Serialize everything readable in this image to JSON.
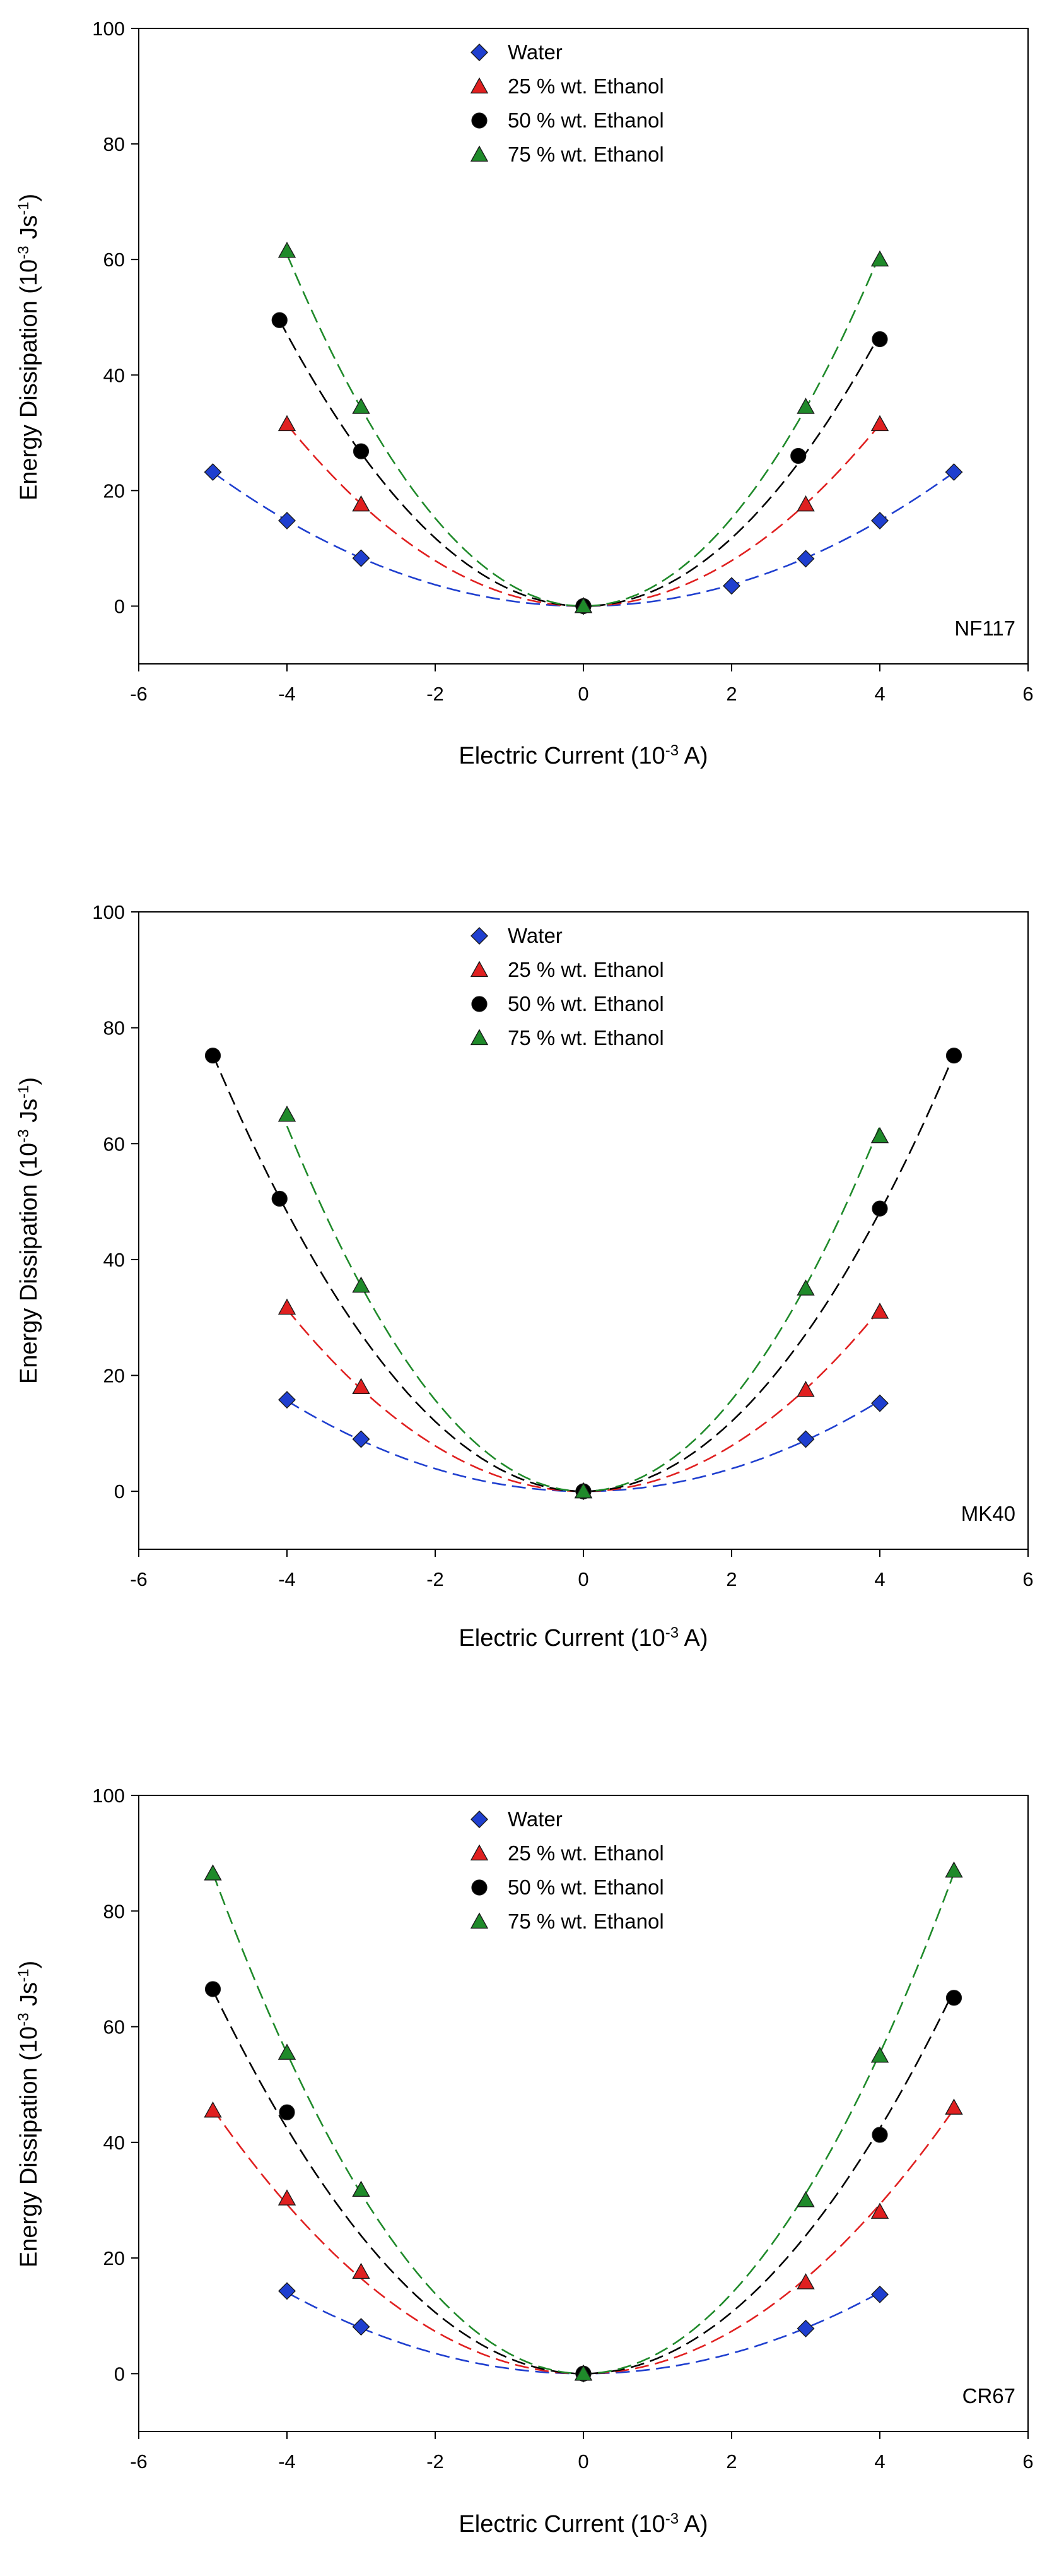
{
  "figure": {
    "colors": {
      "water": "#1f3fcf",
      "ethanol_25": "#e02020",
      "ethanol_50": "#000000",
      "ethanol_75": "#1f8a2a"
    }
  },
  "chart_data": [
    {
      "type": "scatter",
      "panel_label": "NF117",
      "xlabel": "Electric Current (10^-3 A)",
      "ylabel": "Energy Dissipation (10^-3 Js^-1)",
      "xlim": [
        -6,
        6
      ],
      "ylim": [
        -10,
        100
      ],
      "xticks": [
        -6,
        -4,
        -2,
        0,
        2,
        4,
        6
      ],
      "yticks": [
        0,
        20,
        40,
        60,
        80,
        100
      ],
      "legend_position": "top-center",
      "grid": false,
      "fit": "quadratic dashed curves",
      "series": [
        {
          "name": "Water",
          "marker": "diamond",
          "color": "#1f3fcf",
          "x": [
            -5,
            -4,
            -3,
            0,
            2,
            3,
            4,
            5
          ],
          "y": [
            23.2,
            14.8,
            8.3,
            0,
            3.5,
            8.2,
            14.8,
            23.2
          ]
        },
        {
          "name": "25 % wt. Ethanol",
          "marker": "triangle",
          "color": "#e02020",
          "x": [
            -4,
            -3,
            0,
            3,
            4
          ],
          "y": [
            31.5,
            17.6,
            0,
            17.6,
            31.5
          ]
        },
        {
          "name": "50 % wt. Ethanol",
          "marker": "circle",
          "color": "#000000",
          "x": [
            -4.1,
            -3,
            0,
            2.9,
            4
          ],
          "y": [
            49.5,
            26.8,
            0,
            26,
            46.2
          ]
        },
        {
          "name": "75 % wt. Ethanol",
          "marker": "triangle",
          "color": "#1f8a2a",
          "x": [
            -4,
            -3,
            0,
            3,
            4
          ],
          "y": [
            61.5,
            34.5,
            0,
            34.5,
            60
          ]
        }
      ]
    },
    {
      "type": "scatter",
      "panel_label": "MK40",
      "xlabel": "Electric Current (10^-3 A)",
      "ylabel": "Energy Dissipation (10^-3 Js^-1)",
      "xlim": [
        -6,
        6
      ],
      "ylim": [
        -10,
        100
      ],
      "xticks": [
        -6,
        -4,
        -2,
        0,
        2,
        4,
        6
      ],
      "yticks": [
        0,
        20,
        40,
        60,
        80,
        100
      ],
      "legend_position": "top-center",
      "grid": false,
      "fit": "quadratic dashed curves",
      "series": [
        {
          "name": "Water",
          "marker": "diamond",
          "color": "#1f3fcf",
          "x": [
            -4,
            -3,
            0,
            3,
            4
          ],
          "y": [
            15.8,
            9,
            0,
            9,
            15.2
          ]
        },
        {
          "name": "25 % wt. Ethanol",
          "marker": "triangle",
          "color": "#e02020",
          "x": [
            -4,
            -3,
            0,
            3,
            4
          ],
          "y": [
            31.7,
            18,
            0,
            17.5,
            31
          ]
        },
        {
          "name": "50 % wt. Ethanol",
          "marker": "circle",
          "color": "#000000",
          "x": [
            -5,
            -4.1,
            0,
            4,
            5
          ],
          "y": [
            75.2,
            50.5,
            0,
            48.8,
            75.2
          ]
        },
        {
          "name": "75 % wt. Ethanol",
          "marker": "triangle",
          "color": "#1f8a2a",
          "x": [
            -4,
            -3,
            0,
            3,
            4
          ],
          "y": [
            65,
            35.5,
            0,
            35,
            61.3
          ]
        }
      ]
    },
    {
      "type": "scatter",
      "panel_label": "CR67",
      "xlabel": "Electric Current (10^-3 A)",
      "ylabel": "Energy Dissipation (10^-3 Js^-1)",
      "xlim": [
        -6,
        6
      ],
      "ylim": [
        -10,
        100
      ],
      "xticks": [
        -6,
        -4,
        -2,
        0,
        2,
        4,
        6
      ],
      "yticks": [
        0,
        20,
        40,
        60,
        80,
        100
      ],
      "legend_position": "top-center",
      "grid": false,
      "fit": "quadratic dashed curves",
      "series": [
        {
          "name": "Water",
          "marker": "diamond",
          "color": "#1f3fcf",
          "x": [
            -4,
            -3,
            0,
            3,
            4
          ],
          "y": [
            14.3,
            8.1,
            0,
            7.8,
            13.7
          ]
        },
        {
          "name": "25 % wt. Ethanol",
          "marker": "triangle",
          "color": "#e02020",
          "x": [
            -5,
            -4,
            -3,
            0,
            3,
            4,
            5
          ],
          "y": [
            45.5,
            30.3,
            17.6,
            0,
            15.8,
            28,
            46
          ]
        },
        {
          "name": "50 % wt. Ethanol",
          "marker": "circle",
          "color": "#000000",
          "x": [
            -5,
            -4,
            0,
            4,
            5
          ],
          "y": [
            66.5,
            45.2,
            0,
            41.3,
            65
          ]
        },
        {
          "name": "75 % wt. Ethanol",
          "marker": "triangle",
          "color": "#1f8a2a",
          "x": [
            -5,
            -4,
            -3,
            0,
            3,
            4,
            5
          ],
          "y": [
            86.5,
            55.5,
            31.8,
            0,
            30,
            55,
            87
          ]
        }
      ]
    }
  ]
}
